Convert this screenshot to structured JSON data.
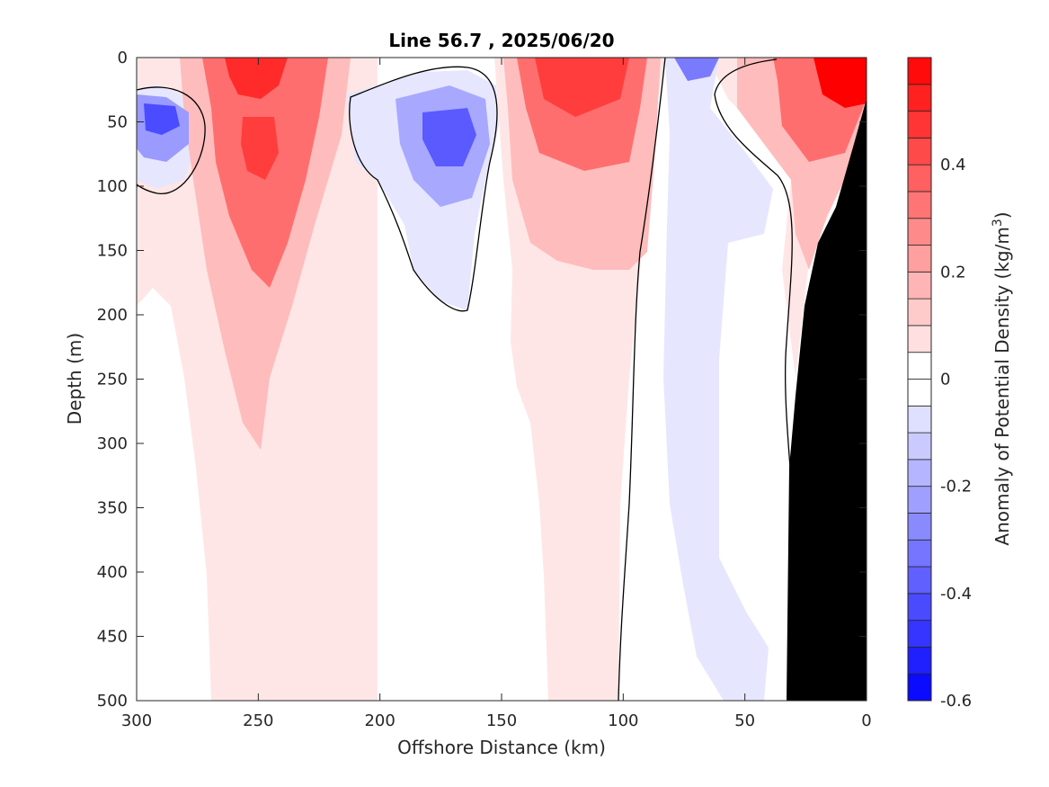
{
  "chart_data": {
    "type": "heatmap",
    "title": "Line 56.7 , 2025/06/20",
    "xlabel": "Offshore Distance (km)",
    "ylabel": "Depth (m)",
    "xlim": [
      300,
      0
    ],
    "ylim": [
      500,
      0
    ],
    "x_reversed": true,
    "y_reversed": true,
    "xticks": [
      300,
      250,
      200,
      150,
      100,
      50,
      0
    ],
    "yticks": [
      0,
      50,
      100,
      150,
      200,
      250,
      300,
      350,
      400,
      450,
      500
    ],
    "colorbar": {
      "label_main": "Anomaly of Potential Density (kg/m",
      "label_sup": "3",
      "label_end": ")",
      "range": [
        -0.6,
        0.6
      ],
      "step": 0.05,
      "ticks": [
        -0.6,
        -0.4,
        -0.2,
        0,
        0.2,
        0.4
      ],
      "tick_labels": [
        "-0.6",
        "-0.4",
        "-0.2",
        "0",
        "0.2",
        "0.4"
      ]
    },
    "zero_contour": true,
    "bathymetry_color": "#000000",
    "features": [
      {
        "kind": "positive_core",
        "x_km": 250,
        "depth_m": 15,
        "value": 0.55
      },
      {
        "kind": "positive_core",
        "x_km": 250,
        "depth_m": 75,
        "value": 0.4
      },
      {
        "kind": "positive_core",
        "x_km": 125,
        "depth_m": 30,
        "value": 0.45
      },
      {
        "kind": "positive_core",
        "x_km": 10,
        "depth_m": 12,
        "value": 0.55
      },
      {
        "kind": "negative_core",
        "x_km": 290,
        "depth_m": 45,
        "value": -0.35
      },
      {
        "kind": "negative_core",
        "x_km": 165,
        "depth_m": 55,
        "value": -0.35
      },
      {
        "kind": "negative_core",
        "x_km": 70,
        "depth_m": 5,
        "value": -0.25
      }
    ]
  },
  "colors": {
    "positive": "#ff0000",
    "negative": "#0000ff",
    "neutral": "#ffffff",
    "axis": "#262626",
    "contour": "#000000"
  }
}
